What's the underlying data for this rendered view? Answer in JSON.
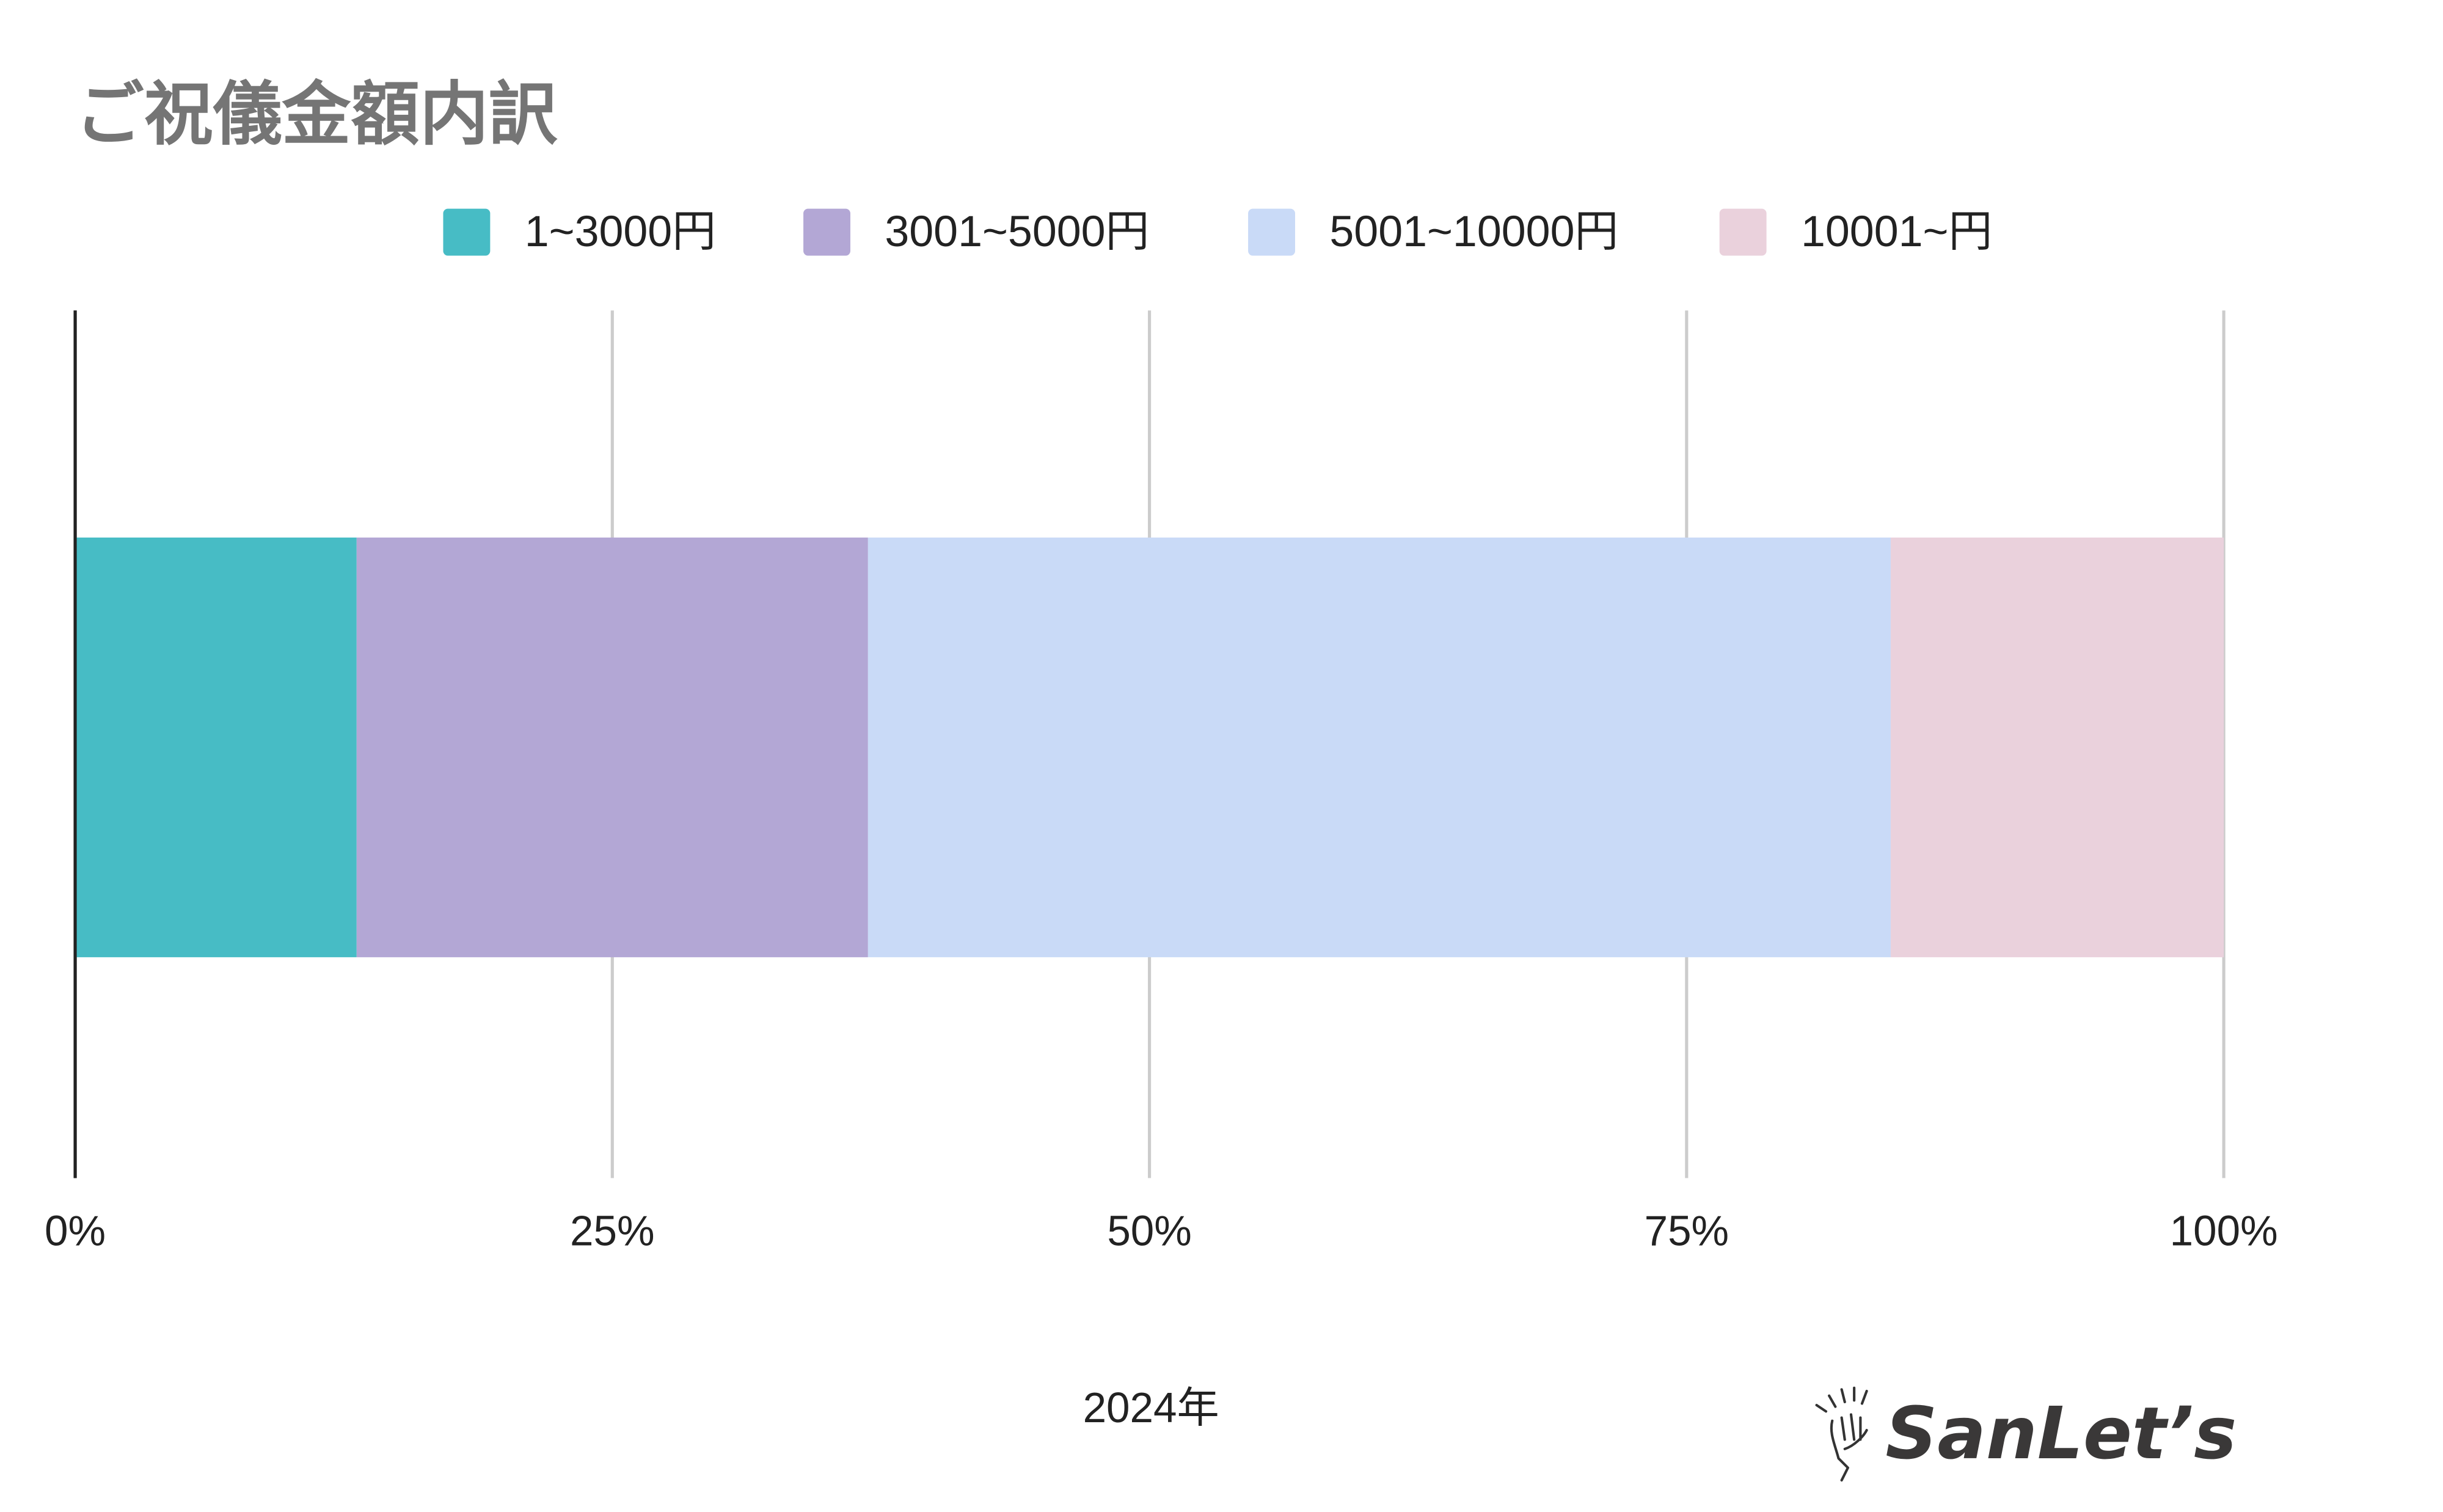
{
  "chart_data": {
    "type": "bar",
    "orientation": "horizontal",
    "stacked": "percent",
    "title": "ご祝儀金額内訳",
    "categories": [
      "2024年"
    ],
    "xlabel": "2024年",
    "ylabel": "",
    "xlim": [
      0,
      100
    ],
    "x_ticks": [
      "0%",
      "25%",
      "50%",
      "75%",
      "100%"
    ],
    "x_tick_values": [
      0,
      25,
      50,
      75,
      100
    ],
    "grid": true,
    "legend_position": "top",
    "series": [
      {
        "name": "1~3000円",
        "values": [
          13.1
        ],
        "color": "#47bcc5"
      },
      {
        "name": "3001~5000円",
        "values": [
          23.8
        ],
        "color": "#b3a7d5"
      },
      {
        "name": "5001~10000円",
        "values": [
          47.6
        ],
        "color": "#c9daf7"
      },
      {
        "name": "10001~円",
        "values": [
          15.5
        ],
        "color": "#ead1dc"
      }
    ]
  },
  "logo": {
    "text": "SanLet's",
    "icon": "high-five-hands-icon"
  }
}
